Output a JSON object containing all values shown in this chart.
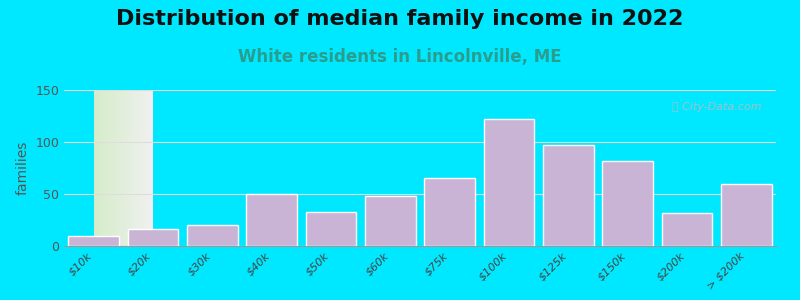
{
  "title": "Distribution of median family income in 2022",
  "subtitle": "White residents in Lincolnville, ME",
  "ylabel": "families",
  "categories": [
    "$10k",
    "$20k",
    "$30k",
    "$40k",
    "$50k",
    "$60k",
    "$75k",
    "$100k",
    "$125k",
    "$150k",
    "$200k",
    "> $200k"
  ],
  "values": [
    10,
    16,
    20,
    50,
    33,
    48,
    65,
    122,
    97,
    82,
    32,
    60
  ],
  "bar_color": "#c9b4d6",
  "bar_edge_color": "#ffffff",
  "bar_edge_width": 1.0,
  "ylim": [
    0,
    150
  ],
  "yticks": [
    0,
    50,
    100,
    150
  ],
  "background_outer": "#00e8ff",
  "plot_bg_left": "#d4ecc8",
  "plot_bg_right": "#f0f0f0",
  "title_fontsize": 16,
  "subtitle_fontsize": 12,
  "subtitle_color": "#2a9d8f",
  "ylabel_fontsize": 10,
  "watermark_text": "ⓘ City-Data.com",
  "watermark_color": "#bbbbbb",
  "grid_color": "#dddddd",
  "tick_label_fontsize": 8,
  "ytick_label_fontsize": 9
}
